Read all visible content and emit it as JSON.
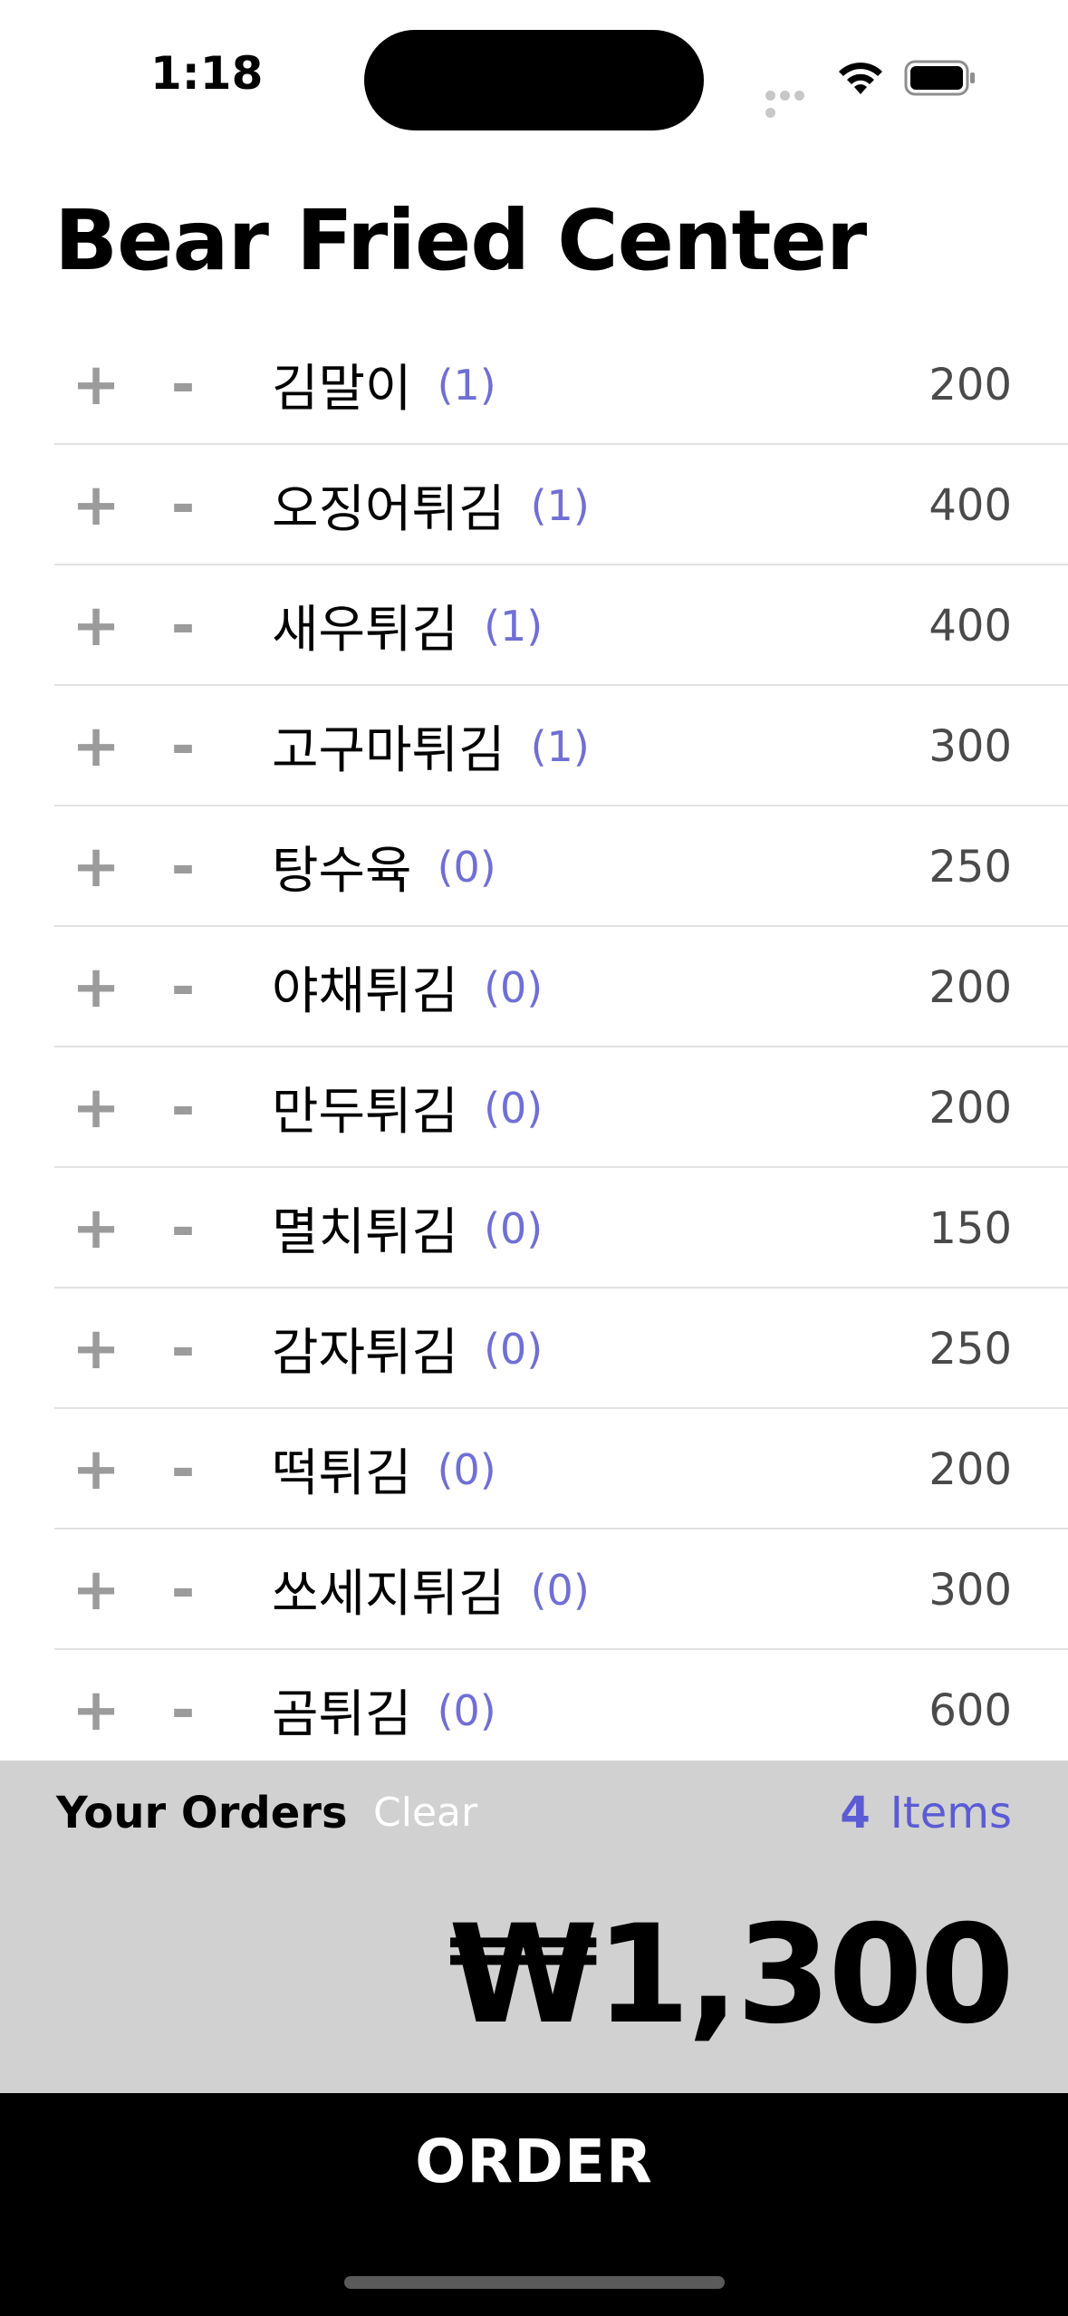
{
  "status_bar": {
    "time": "1:18"
  },
  "header": {
    "title": "Bear Fried Center"
  },
  "controls": {
    "plus_label": "+",
    "minus_label": "-"
  },
  "menu": {
    "items": [
      {
        "name": "김말이",
        "count": "(1)",
        "price": "200"
      },
      {
        "name": "오징어튀김",
        "count": "(1)",
        "price": "400"
      },
      {
        "name": "새우튀김",
        "count": "(1)",
        "price": "400"
      },
      {
        "name": "고구마튀김",
        "count": "(1)",
        "price": "300"
      },
      {
        "name": "탕수육",
        "count": "(0)",
        "price": "250"
      },
      {
        "name": "야채튀김",
        "count": "(0)",
        "price": "200"
      },
      {
        "name": "만두튀김",
        "count": "(0)",
        "price": "200"
      },
      {
        "name": "멸치튀김",
        "count": "(0)",
        "price": "150"
      },
      {
        "name": "감자튀김",
        "count": "(0)",
        "price": "250"
      },
      {
        "name": "떡튀김",
        "count": "(0)",
        "price": "200"
      },
      {
        "name": "쏘세지튀김",
        "count": "(0)",
        "price": "300"
      },
      {
        "name": "곰튀김",
        "count": "(0)",
        "price": "600"
      }
    ]
  },
  "summary": {
    "label": "Your Orders",
    "clear_label": "Clear",
    "item_count": "4",
    "items_label": "Items",
    "total": "₩1,300"
  },
  "order": {
    "button_label": "ORDER"
  },
  "colors": {
    "accent": "#5b5bd6",
    "summary_bg": "#d1d1d1",
    "order_bg": "#000000"
  }
}
